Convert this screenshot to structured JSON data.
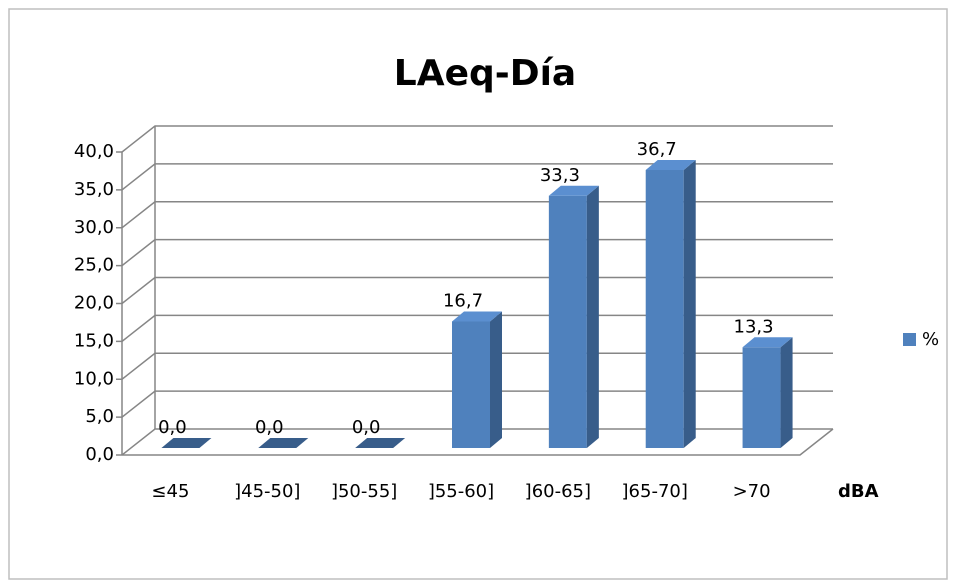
{
  "chart_data": {
    "type": "bar3d",
    "title": "LAeq-Día",
    "x_label": "dBA",
    "categories": [
      "≤45",
      "]45-50]",
      "]50-55]",
      "]55-60]",
      "]60-65]",
      "]65-70]",
      ">70"
    ],
    "series": [
      {
        "name": "%",
        "color": "#4f81bd",
        "values": [
          0,
          0,
          0,
          16.7,
          33.3,
          36.7,
          13.3
        ],
        "value_labels": [
          "0,0",
          "0,0",
          "0,0",
          "16,7",
          "33,3",
          "36,7",
          "13,3"
        ]
      }
    ],
    "ylim": [
      0,
      40
    ],
    "yticks": [
      {
        "value": 0,
        "label": "0,0"
      },
      {
        "value": 5,
        "label": "5,0"
      },
      {
        "value": 10,
        "label": "10,0"
      },
      {
        "value": 15,
        "label": "15,0"
      },
      {
        "value": 20,
        "label": "20,0"
      },
      {
        "value": 25,
        "label": "25,0"
      },
      {
        "value": 30,
        "label": "30,0"
      },
      {
        "value": 35,
        "label": "35,0"
      },
      {
        "value": 40,
        "label": "40,0"
      }
    ],
    "grid": true,
    "legend": "right"
  }
}
